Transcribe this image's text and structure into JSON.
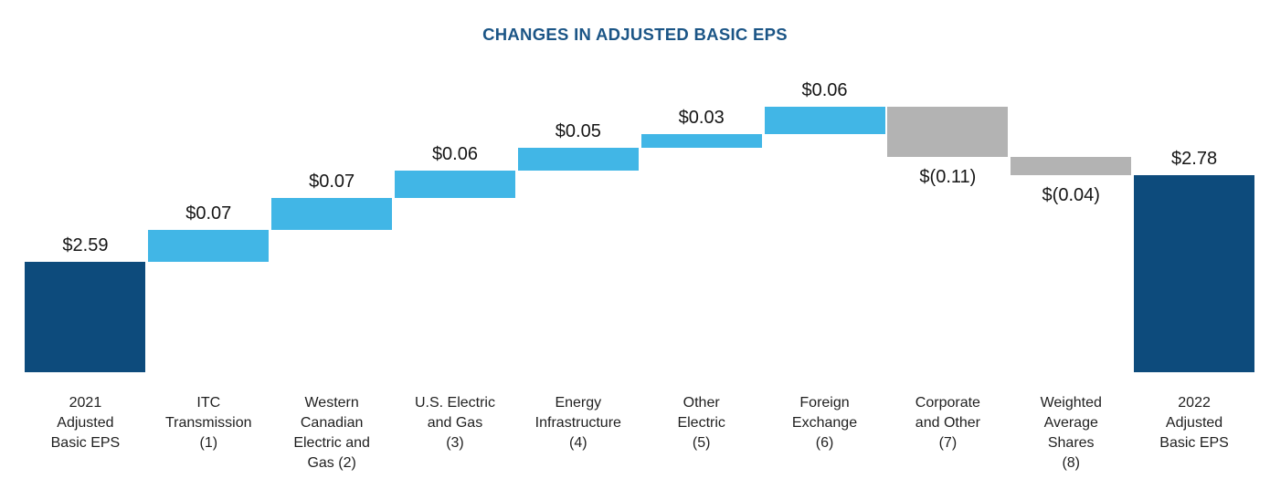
{
  "title": "CHANGES IN ADJUSTED BASIC EPS",
  "chart_data": {
    "type": "bar",
    "subtype": "waterfall",
    "title": "CHANGES IN ADJUSTED BASIC EPS",
    "title_color": "#1b5586",
    "unit": "dollars per share",
    "baseline_truncated": true,
    "grid": false,
    "legend": false,
    "colors": {
      "total": "#0d4b7c",
      "increase": "#41b6e6",
      "decrease": "#b3b3b3",
      "value_text": "#151515",
      "category_text": "#1f1f1f"
    },
    "start_total": 2.59,
    "end_total": 2.78,
    "categories": [
      "2021 Adjusted Basic EPS",
      "ITC Transmission (1)",
      "Western Canadian Electric and Gas (2)",
      "U.S. Electric and Gas (3)",
      "Energy Infrastructure (4)",
      "Other Electric (5)",
      "Foreign Exchange (6)",
      "Corporate and Other (7)",
      "Weighted Average Shares (8)",
      "2022 Adjusted Basic EPS"
    ],
    "bars": [
      {
        "key": "2021-adjusted-basic-eps",
        "category": "2021\nAdjusted\nBasic EPS",
        "value": 2.59,
        "label": "$2.59",
        "kind": "total"
      },
      {
        "key": "itc-transmission",
        "category": "ITC\nTransmission\n(1)",
        "value": 0.07,
        "label": "$0.07",
        "kind": "increase"
      },
      {
        "key": "western-canadian",
        "category": "Western\nCanadian\nElectric and\nGas (2)",
        "value": 0.07,
        "label": "$0.07",
        "kind": "increase"
      },
      {
        "key": "us-electric-and-gas",
        "category": "U.S. Electric\nand Gas\n(3)",
        "value": 0.06,
        "label": "$0.06",
        "kind": "increase"
      },
      {
        "key": "energy-infrastructure",
        "category": "Energy\nInfrastructure\n(4)",
        "value": 0.05,
        "label": "$0.05",
        "kind": "increase"
      },
      {
        "key": "other-electric",
        "category": "Other\nElectric\n(5)",
        "value": 0.03,
        "label": "$0.03",
        "kind": "increase"
      },
      {
        "key": "foreign-exchange",
        "category": "Foreign\nExchange\n(6)",
        "value": 0.06,
        "label": "$0.06",
        "kind": "increase"
      },
      {
        "key": "corporate-and-other",
        "category": "Corporate\nand Other\n(7)",
        "value": -0.11,
        "label": "$(0.11)",
        "kind": "decrease"
      },
      {
        "key": "weighted-average-shares",
        "category": "Weighted\nAverage\nShares\n(8)",
        "value": -0.04,
        "label": "$(0.04)",
        "kind": "decrease"
      },
      {
        "key": "2022-adjusted-basic-eps",
        "category": "2022\nAdjusted\nBasic EPS",
        "value": 2.78,
        "label": "$2.78",
        "kind": "total"
      }
    ]
  }
}
